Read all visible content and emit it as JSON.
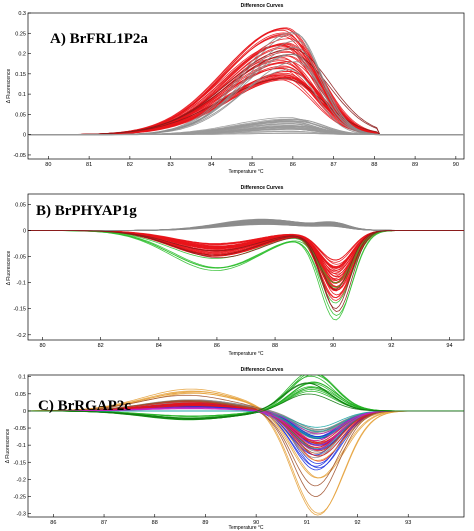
{
  "chart_data": [
    {
      "type": "line",
      "title": "Difference Curves",
      "panel_label": "A) BrFRL1P2a",
      "xlabel": "Temperature °C",
      "ylabel": "Δ Fluorescence",
      "xlim": [
        79.5,
        90.2
      ],
      "ylim": [
        -0.06,
        0.3
      ],
      "xticks": [
        80,
        81,
        82,
        83,
        84,
        85,
        86,
        87,
        88,
        89,
        90
      ],
      "yticks": [
        -0.05,
        0,
        0.05,
        0.1,
        0.15,
        0.2,
        0.25,
        0.3
      ],
      "grid": false,
      "series": [
        {
          "group": "red",
          "color": "#e8141a",
          "count": 44,
          "shape": "peak",
          "params": {
            "center": 85.8,
            "width": 1.45,
            "amp": 0.24,
            "skew": 0.55,
            "xmin": 80.5,
            "xmax": 88.1
          }
        },
        {
          "group": "darkred",
          "color": "#8b1a1a",
          "count": 3,
          "shape": "peak",
          "params": {
            "center": 85.9,
            "width": 1.55,
            "amp": 0.22,
            "skew": 0.6,
            "xmin": 80.5,
            "xmax": 88.1
          }
        },
        {
          "group": "gray-high",
          "color": "#8c8c8c",
          "count": 8,
          "shape": "peak",
          "params": {
            "center": 86.0,
            "width": 1.25,
            "amp": 0.26,
            "skew": 0.5,
            "xmin": 80.5,
            "xmax": 88.1
          }
        },
        {
          "group": "gray-low",
          "color": "#999999",
          "count": 32,
          "shape": "peak",
          "params": {
            "center": 86.0,
            "width": 1.3,
            "amp": 0.0,
            "skew": 0.5,
            "xmin": 80.5,
            "xmax": 88.3
          }
        }
      ]
    },
    {
      "type": "line",
      "title": "Difference Curves",
      "panel_label": "B) BrPHYAP1g",
      "xlabel": "Temperature °C",
      "ylabel": "Δ Fluorescence",
      "xlim": [
        79.5,
        94.5
      ],
      "ylim": [
        -0.21,
        0.07
      ],
      "xticks": [
        80,
        82,
        84,
        86,
        88,
        90,
        92,
        94
      ],
      "yticks": [
        -0.2,
        -0.15,
        -0.1,
        -0.05,
        0,
        0.05
      ],
      "grid": false,
      "series": [
        {
          "group": "red",
          "color": "#e8141a",
          "count": 40,
          "shape": "dip",
          "params": {
            "c1": 86.0,
            "w1": 1.5,
            "a1": -0.045,
            "c2": 90.1,
            "w2": 0.55,
            "a2": -0.12
          }
        },
        {
          "group": "green",
          "color": "#2fbf2f",
          "count": 5,
          "shape": "dip",
          "params": {
            "c1": 86.0,
            "w1": 1.55,
            "a1": -0.07,
            "c2": 90.1,
            "w2": 0.55,
            "a2": -0.17
          }
        },
        {
          "group": "gray",
          "color": "#8c8c8c",
          "count": 36,
          "shape": "dip",
          "params": {
            "c1": 87.6,
            "w1": 1.5,
            "a1": 0.02,
            "c2": 90.0,
            "w2": 0.5,
            "a2": 0.01
          }
        },
        {
          "group": "darkred",
          "color": "#8b1a1a",
          "count": 3,
          "shape": "dip",
          "params": {
            "c1": 86.0,
            "w1": 1.5,
            "a1": -0.05,
            "c2": 90.1,
            "w2": 0.5,
            "a2": -0.15
          }
        }
      ]
    },
    {
      "type": "line",
      "title": "Difference Curves",
      "panel_label": "C) BrRGAP2c",
      "xlabel": "Temperature °C",
      "ylabel": "Δ Fluorescence",
      "xlim": [
        85.5,
        94.1
      ],
      "ylim": [
        -0.31,
        0.105
      ],
      "xticks": [
        86,
        87,
        88,
        89,
        90,
        91,
        92,
        93
      ],
      "yticks": [
        -0.3,
        -0.25,
        -0.2,
        -0.15,
        -0.1,
        -0.05,
        0,
        0.05,
        0.1
      ],
      "grid": false,
      "series": [
        {
          "group": "gray",
          "color": "#8c8c8c",
          "count": 28,
          "shape": "sigmoid",
          "params": {
            "c1": 88.7,
            "w1": 0.9,
            "a1": 0.03,
            "c2": 91.2,
            "w2": 0.45,
            "a2": -0.12
          }
        },
        {
          "group": "blue",
          "color": "#1a2fe0",
          "count": 14,
          "shape": "sigmoid",
          "params": {
            "c1": 88.7,
            "w1": 0.9,
            "a1": 0.02,
            "c2": 91.2,
            "w2": 0.45,
            "a2": -0.16
          }
        },
        {
          "group": "green",
          "color": "#22b022",
          "count": 12,
          "shape": "sigmoid",
          "params": {
            "c1": 88.7,
            "w1": 0.9,
            "a1": -0.025,
            "c2": 91.1,
            "w2": 0.45,
            "a2": 0.1
          }
        },
        {
          "group": "red",
          "color": "#e8141a",
          "count": 9,
          "shape": "sigmoid",
          "params": {
            "c1": 88.7,
            "w1": 0.9,
            "a1": 0.025,
            "c2": 91.2,
            "w2": 0.45,
            "a2": -0.15
          }
        },
        {
          "group": "orange",
          "color": "#e6a23c",
          "count": 5,
          "shape": "sigmoid",
          "params": {
            "c1": 88.7,
            "w1": 0.95,
            "a1": 0.06,
            "c2": 91.2,
            "w2": 0.5,
            "a2": -0.28
          }
        },
        {
          "group": "teal",
          "color": "#1aa6a6",
          "count": 5,
          "shape": "sigmoid",
          "params": {
            "c1": 88.7,
            "w1": 0.9,
            "a1": 0.0,
            "c2": 91.2,
            "w2": 0.45,
            "a2": -0.1
          }
        },
        {
          "group": "brown",
          "color": "#a0522d",
          "count": 4,
          "shape": "sigmoid",
          "params": {
            "c1": 88.7,
            "w1": 0.9,
            "a1": 0.045,
            "c2": 91.2,
            "w2": 0.45,
            "a2": -0.22
          }
        },
        {
          "group": "magenta",
          "color": "#c020c0",
          "count": 4,
          "shape": "sigmoid",
          "params": {
            "c1": 88.7,
            "w1": 0.9,
            "a1": 0.01,
            "c2": 91.2,
            "w2": 0.45,
            "a2": -0.13
          }
        },
        {
          "group": "darkgreen",
          "color": "#0f7a0f",
          "count": 3,
          "shape": "sigmoid",
          "params": {
            "c1": 88.7,
            "w1": 0.9,
            "a1": -0.035,
            "c2": 91.0,
            "w2": 0.45,
            "a2": 0.085
          }
        }
      ]
    }
  ]
}
